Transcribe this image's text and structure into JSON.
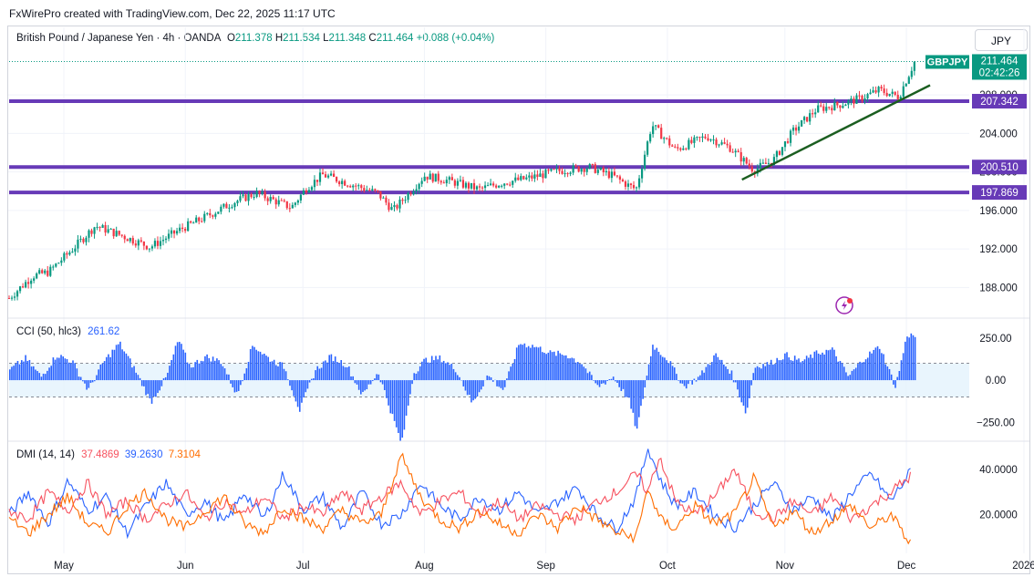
{
  "credit": "FxWirePro created with TradingView.com, Dec 22, 2025 11:17 UTC",
  "header": {
    "symbol": "British Pound / Japanese Yen · 4h · OANDA",
    "o_label": "O",
    "o_value": "211.378",
    "h_label": "H",
    "h_value": "211.534",
    "l_label": "L",
    "l_value": "211.348",
    "c_label": "C",
    "c_value": "211.464",
    "change": "+0.088 (+0.04%)"
  },
  "currency": "JPY",
  "colors": {
    "up": "#089981",
    "down": "#f23645",
    "level": "#673ab7",
    "trend": "#1b5e20",
    "cci": "#2962ff",
    "dmi_plus": "#2962ff",
    "dmi_minus": "#f7525f",
    "adx": "#ff6d00",
    "last": "#089981",
    "axis_text": "#131722"
  },
  "chart_data": [
    {
      "type": "candlestick",
      "title": "British Pound / Japanese Yen · 4h · OANDA",
      "ylim": [
        185.2,
        213.4
      ],
      "y_ticks": [
        "188.000",
        "192.000",
        "196.000",
        "200.000",
        "204.000",
        "208.000"
      ],
      "x_ticks": [
        "May",
        "Jun",
        "Jul",
        "Aug",
        "Sep",
        "Oct",
        "Nov",
        "Dec",
        "2026"
      ],
      "price_path": [
        {
          "d": 0,
          "v": 186.9
        },
        {
          "d": 6,
          "v": 189.2
        },
        {
          "d": 10,
          "v": 189.6
        },
        {
          "d": 16,
          "v": 191.9
        },
        {
          "d": 22,
          "v": 194.4
        },
        {
          "d": 28,
          "v": 193.5
        },
        {
          "d": 36,
          "v": 192.2
        },
        {
          "d": 44,
          "v": 194.1
        },
        {
          "d": 50,
          "v": 195.3
        },
        {
          "d": 57,
          "v": 196.8
        },
        {
          "d": 63,
          "v": 197.8
        },
        {
          "d": 72,
          "v": 196.3
        },
        {
          "d": 76,
          "v": 198.4
        },
        {
          "d": 80,
          "v": 199.7
        },
        {
          "d": 86,
          "v": 198.9
        },
        {
          "d": 94,
          "v": 197.8
        },
        {
          "d": 98,
          "v": 196.0
        },
        {
          "d": 106,
          "v": 199.6
        },
        {
          "d": 112,
          "v": 199.1
        },
        {
          "d": 120,
          "v": 198.2
        },
        {
          "d": 126,
          "v": 198.9
        },
        {
          "d": 132,
          "v": 199.3
        },
        {
          "d": 140,
          "v": 200.1
        },
        {
          "d": 148,
          "v": 200.5
        },
        {
          "d": 154,
          "v": 199.6
        },
        {
          "d": 158,
          "v": 198.6
        },
        {
          "d": 160,
          "v": 198.2
        },
        {
          "d": 164,
          "v": 204.9
        },
        {
          "d": 170,
          "v": 202.3
        },
        {
          "d": 178,
          "v": 203.7
        },
        {
          "d": 184,
          "v": 202.5
        },
        {
          "d": 190,
          "v": 200.2
        },
        {
          "d": 195,
          "v": 201.2
        },
        {
          "d": 200,
          "v": 204.2
        },
        {
          "d": 206,
          "v": 206.5
        },
        {
          "d": 212,
          "v": 207.0
        },
        {
          "d": 217,
          "v": 207.6
        },
        {
          "d": 222,
          "v": 208.5
        },
        {
          "d": 227,
          "v": 207.8
        },
        {
          "d": 231,
          "v": 211.4
        }
      ],
      "levels": [
        "207.342",
        "200.510",
        "197.869"
      ],
      "trendline": {
        "start": {
          "d": 187,
          "v": 199.2
        },
        "end": {
          "d": 235,
          "v": 209.0
        }
      },
      "last_price": {
        "symbol": "GBPJPY",
        "price": "211.464",
        "countdown": "02:42:26"
      }
    },
    {
      "type": "area",
      "name": "CCI",
      "legend": "CCI (50, hlc3)",
      "value": "261.62",
      "ylim": [
        -340,
        330
      ],
      "y_ticks": [
        "250.00",
        "0.00",
        "−250.00"
      ],
      "band": [
        -100,
        100
      ],
      "path": [
        {
          "d": 0,
          "v": 60
        },
        {
          "d": 4,
          "v": 130
        },
        {
          "d": 8,
          "v": 20
        },
        {
          "d": 12,
          "v": 150
        },
        {
          "d": 16,
          "v": 110
        },
        {
          "d": 20,
          "v": -60
        },
        {
          "d": 24,
          "v": 110
        },
        {
          "d": 28,
          "v": 220
        },
        {
          "d": 32,
          "v": 60
        },
        {
          "d": 36,
          "v": -130
        },
        {
          "d": 40,
          "v": 20
        },
        {
          "d": 43,
          "v": 240
        },
        {
          "d": 46,
          "v": 80
        },
        {
          "d": 50,
          "v": 140
        },
        {
          "d": 54,
          "v": 110
        },
        {
          "d": 58,
          "v": -90
        },
        {
          "d": 62,
          "v": 210
        },
        {
          "d": 66,
          "v": 130
        },
        {
          "d": 70,
          "v": 80
        },
        {
          "d": 74,
          "v": -180
        },
        {
          "d": 78,
          "v": 60
        },
        {
          "d": 82,
          "v": 140
        },
        {
          "d": 86,
          "v": 90
        },
        {
          "d": 90,
          "v": -90
        },
        {
          "d": 94,
          "v": 50
        },
        {
          "d": 98,
          "v": -240
        },
        {
          "d": 100,
          "v": -380
        },
        {
          "d": 103,
          "v": 40
        },
        {
          "d": 106,
          "v": 120
        },
        {
          "d": 110,
          "v": 130
        },
        {
          "d": 114,
          "v": 60
        },
        {
          "d": 118,
          "v": -140
        },
        {
          "d": 122,
          "v": 30
        },
        {
          "d": 126,
          "v": -60
        },
        {
          "d": 130,
          "v": 220
        },
        {
          "d": 134,
          "v": 200
        },
        {
          "d": 138,
          "v": 160
        },
        {
          "d": 142,
          "v": 150
        },
        {
          "d": 146,
          "v": 100
        },
        {
          "d": 150,
          "v": -40
        },
        {
          "d": 154,
          "v": 20
        },
        {
          "d": 158,
          "v": -120
        },
        {
          "d": 160,
          "v": -300
        },
        {
          "d": 164,
          "v": 210
        },
        {
          "d": 168,
          "v": 120
        },
        {
          "d": 172,
          "v": -40
        },
        {
          "d": 176,
          "v": 20
        },
        {
          "d": 180,
          "v": 150
        },
        {
          "d": 184,
          "v": 50
        },
        {
          "d": 188,
          "v": -200
        },
        {
          "d": 190,
          "v": 80
        },
        {
          "d": 194,
          "v": 100
        },
        {
          "d": 198,
          "v": 150
        },
        {
          "d": 202,
          "v": 110
        },
        {
          "d": 206,
          "v": 160
        },
        {
          "d": 210,
          "v": 180
        },
        {
          "d": 214,
          "v": 20
        },
        {
          "d": 218,
          "v": 130
        },
        {
          "d": 222,
          "v": 200
        },
        {
          "d": 226,
          "v": -40
        },
        {
          "d": 229,
          "v": 270
        },
        {
          "d": 231,
          "v": 262
        }
      ]
    },
    {
      "type": "line",
      "name": "DMI",
      "legend": "DMI (14, 14)",
      "ylim": [
        5,
        50
      ],
      "y_ticks": [
        "40.0000",
        "20.0000"
      ],
      "series": [
        {
          "name": "+DI",
          "value": "37.4869",
          "path": [
            {
              "d": 0,
              "v": 20
            },
            {
              "d": 5,
              "v": 30
            },
            {
              "d": 10,
              "v": 16
            },
            {
              "d": 15,
              "v": 35
            },
            {
              "d": 20,
              "v": 22
            },
            {
              "d": 25,
              "v": 28
            },
            {
              "d": 30,
              "v": 12
            },
            {
              "d": 35,
              "v": 24
            },
            {
              "d": 40,
              "v": 34
            },
            {
              "d": 45,
              "v": 20
            },
            {
              "d": 50,
              "v": 26
            },
            {
              "d": 55,
              "v": 16
            },
            {
              "d": 60,
              "v": 30
            },
            {
              "d": 65,
              "v": 18
            },
            {
              "d": 70,
              "v": 38
            },
            {
              "d": 75,
              "v": 22
            },
            {
              "d": 80,
              "v": 28
            },
            {
              "d": 85,
              "v": 14
            },
            {
              "d": 90,
              "v": 30
            },
            {
              "d": 95,
              "v": 16
            },
            {
              "d": 100,
              "v": 20
            },
            {
              "d": 105,
              "v": 34
            },
            {
              "d": 110,
              "v": 24
            },
            {
              "d": 115,
              "v": 18
            },
            {
              "d": 120,
              "v": 28
            },
            {
              "d": 125,
              "v": 22
            },
            {
              "d": 130,
              "v": 30
            },
            {
              "d": 135,
              "v": 20
            },
            {
              "d": 140,
              "v": 26
            },
            {
              "d": 145,
              "v": 32
            },
            {
              "d": 150,
              "v": 20
            },
            {
              "d": 155,
              "v": 14
            },
            {
              "d": 160,
              "v": 28
            },
            {
              "d": 163,
              "v": 50
            },
            {
              "d": 166,
              "v": 36
            },
            {
              "d": 170,
              "v": 24
            },
            {
              "d": 175,
              "v": 30
            },
            {
              "d": 180,
              "v": 20
            },
            {
              "d": 185,
              "v": 14
            },
            {
              "d": 190,
              "v": 24
            },
            {
              "d": 195,
              "v": 34
            },
            {
              "d": 200,
              "v": 22
            },
            {
              "d": 205,
              "v": 28
            },
            {
              "d": 210,
              "v": 18
            },
            {
              "d": 215,
              "v": 30
            },
            {
              "d": 220,
              "v": 38
            },
            {
              "d": 225,
              "v": 26
            },
            {
              "d": 230,
              "v": 39
            }
          ]
        },
        {
          "name": "-DI",
          "value": "39.2630",
          "path": [
            {
              "d": 0,
              "v": 22
            },
            {
              "d": 5,
              "v": 18
            },
            {
              "d": 10,
              "v": 30
            },
            {
              "d": 15,
              "v": 22
            },
            {
              "d": 20,
              "v": 34
            },
            {
              "d": 25,
              "v": 20
            },
            {
              "d": 30,
              "v": 26
            },
            {
              "d": 35,
              "v": 18
            },
            {
              "d": 40,
              "v": 24
            },
            {
              "d": 45,
              "v": 30
            },
            {
              "d": 50,
              "v": 18
            },
            {
              "d": 55,
              "v": 26
            },
            {
              "d": 60,
              "v": 20
            },
            {
              "d": 65,
              "v": 28
            },
            {
              "d": 70,
              "v": 18
            },
            {
              "d": 75,
              "v": 24
            },
            {
              "d": 80,
              "v": 20
            },
            {
              "d": 85,
              "v": 30
            },
            {
              "d": 90,
              "v": 22
            },
            {
              "d": 95,
              "v": 28
            },
            {
              "d": 100,
              "v": 34
            },
            {
              "d": 105,
              "v": 20
            },
            {
              "d": 110,
              "v": 26
            },
            {
              "d": 115,
              "v": 30
            },
            {
              "d": 120,
              "v": 20
            },
            {
              "d": 125,
              "v": 26
            },
            {
              "d": 130,
              "v": 18
            },
            {
              "d": 135,
              "v": 24
            },
            {
              "d": 140,
              "v": 20
            },
            {
              "d": 145,
              "v": 18
            },
            {
              "d": 150,
              "v": 26
            },
            {
              "d": 155,
              "v": 30
            },
            {
              "d": 160,
              "v": 38
            },
            {
              "d": 163,
              "v": 30
            },
            {
              "d": 166,
              "v": 46
            },
            {
              "d": 170,
              "v": 26
            },
            {
              "d": 175,
              "v": 20
            },
            {
              "d": 180,
              "v": 28
            },
            {
              "d": 185,
              "v": 40
            },
            {
              "d": 190,
              "v": 22
            },
            {
              "d": 195,
              "v": 18
            },
            {
              "d": 200,
              "v": 26
            },
            {
              "d": 205,
              "v": 20
            },
            {
              "d": 210,
              "v": 28
            },
            {
              "d": 215,
              "v": 18
            },
            {
              "d": 220,
              "v": 24
            },
            {
              "d": 225,
              "v": 30
            },
            {
              "d": 230,
              "v": 37
            }
          ]
        },
        {
          "name": "ADX",
          "value": "7.3104",
          "path": [
            {
              "d": 0,
              "v": 18
            },
            {
              "d": 5,
              "v": 12
            },
            {
              "d": 10,
              "v": 20
            },
            {
              "d": 15,
              "v": 28
            },
            {
              "d": 20,
              "v": 16
            },
            {
              "d": 25,
              "v": 12
            },
            {
              "d": 30,
              "v": 24
            },
            {
              "d": 35,
              "v": 30
            },
            {
              "d": 40,
              "v": 18
            },
            {
              "d": 45,
              "v": 14
            },
            {
              "d": 50,
              "v": 22
            },
            {
              "d": 55,
              "v": 28
            },
            {
              "d": 60,
              "v": 16
            },
            {
              "d": 65,
              "v": 12
            },
            {
              "d": 70,
              "v": 24
            },
            {
              "d": 75,
              "v": 18
            },
            {
              "d": 80,
              "v": 14
            },
            {
              "d": 85,
              "v": 22
            },
            {
              "d": 90,
              "v": 16
            },
            {
              "d": 95,
              "v": 20
            },
            {
              "d": 100,
              "v": 46
            },
            {
              "d": 105,
              "v": 28
            },
            {
              "d": 110,
              "v": 18
            },
            {
              "d": 115,
              "v": 14
            },
            {
              "d": 120,
              "v": 22
            },
            {
              "d": 125,
              "v": 16
            },
            {
              "d": 130,
              "v": 12
            },
            {
              "d": 135,
              "v": 20
            },
            {
              "d": 140,
              "v": 14
            },
            {
              "d": 145,
              "v": 24
            },
            {
              "d": 150,
              "v": 18
            },
            {
              "d": 155,
              "v": 12
            },
            {
              "d": 160,
              "v": 10
            },
            {
              "d": 163,
              "v": 32
            },
            {
              "d": 166,
              "v": 18
            },
            {
              "d": 170,
              "v": 14
            },
            {
              "d": 175,
              "v": 24
            },
            {
              "d": 180,
              "v": 16
            },
            {
              "d": 185,
              "v": 20
            },
            {
              "d": 190,
              "v": 36
            },
            {
              "d": 195,
              "v": 14
            },
            {
              "d": 200,
              "v": 22
            },
            {
              "d": 205,
              "v": 12
            },
            {
              "d": 210,
              "v": 18
            },
            {
              "d": 215,
              "v": 24
            },
            {
              "d": 220,
              "v": 14
            },
            {
              "d": 225,
              "v": 20
            },
            {
              "d": 230,
              "v": 7
            }
          ]
        }
      ]
    }
  ]
}
